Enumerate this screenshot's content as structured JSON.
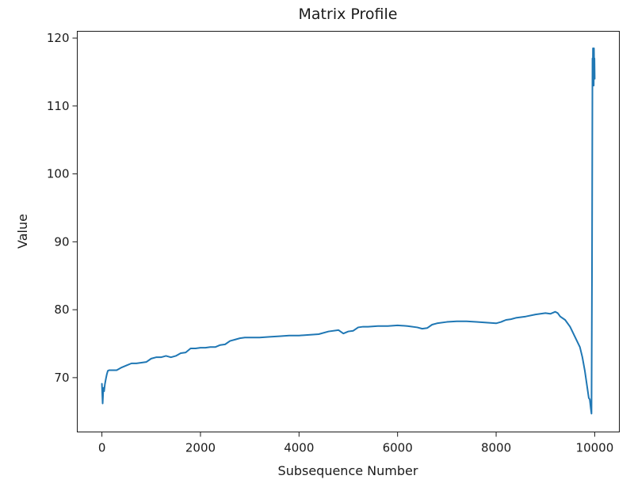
{
  "chart_data": {
    "type": "line",
    "title": "Matrix Profile",
    "xlabel": "Subsequence Number",
    "ylabel": "Value",
    "xlim": [
      -500,
      10500
    ],
    "ylim": [
      62,
      121
    ],
    "xticks": [
      0,
      2000,
      4000,
      6000,
      8000,
      10000
    ],
    "xtick_labels": [
      "0",
      "2000",
      "4000",
      "6000",
      "8000",
      "10000"
    ],
    "yticks": [
      70,
      80,
      90,
      100,
      110,
      120
    ],
    "ytick_labels": [
      "70",
      "80",
      "90",
      "100",
      "110",
      "120"
    ],
    "grid": false,
    "series": [
      {
        "color": "#1f77b4",
        "x": [
          0,
          15,
          30,
          45,
          60,
          80,
          100,
          120,
          150,
          200,
          300,
          400,
          500,
          600,
          700,
          800,
          900,
          1000,
          1100,
          1200,
          1300,
          1400,
          1500,
          1600,
          1700,
          1800,
          1900,
          2000,
          2100,
          2200,
          2300,
          2400,
          2500,
          2600,
          2700,
          2800,
          2900,
          3000,
          3200,
          3400,
          3600,
          3800,
          4000,
          4200,
          4400,
          4600,
          4800,
          4900,
          5000,
          5100,
          5200,
          5300,
          5400,
          5600,
          5800,
          6000,
          6200,
          6400,
          6500,
          6600,
          6700,
          6800,
          7000,
          7200,
          7400,
          7600,
          7800,
          8000,
          8100,
          8200,
          8300,
          8400,
          8600,
          8800,
          9000,
          9100,
          9200,
          9250,
          9300,
          9400,
          9500,
          9600,
          9700,
          9750,
          9800,
          9850,
          9880,
          9900,
          9920,
          9935,
          9945,
          9955,
          9960,
          9965,
          9970,
          9975,
          9980,
          9985,
          9990,
          9995,
          10000
        ],
        "values": [
          69.1,
          66.2,
          68.5,
          68.0,
          69.0,
          69.8,
          70.5,
          71.0,
          71.1,
          71.1,
          71.1,
          71.5,
          71.8,
          72.1,
          72.1,
          72.2,
          72.3,
          72.8,
          73.0,
          73.0,
          73.2,
          73.0,
          73.2,
          73.6,
          73.7,
          74.3,
          74.3,
          74.4,
          74.4,
          74.5,
          74.5,
          74.8,
          74.9,
          75.4,
          75.6,
          75.8,
          75.9,
          75.9,
          75.9,
          76.0,
          76.1,
          76.2,
          76.2,
          76.3,
          76.4,
          76.8,
          77.0,
          76.5,
          76.8,
          76.9,
          77.4,
          77.5,
          77.5,
          77.6,
          77.6,
          77.7,
          77.6,
          77.4,
          77.2,
          77.3,
          77.8,
          78.0,
          78.2,
          78.3,
          78.3,
          78.2,
          78.1,
          78.0,
          78.2,
          78.5,
          78.6,
          78.8,
          79.0,
          79.3,
          79.5,
          79.4,
          79.7,
          79.5,
          79.0,
          78.5,
          77.5,
          76.0,
          74.5,
          73.0,
          71.0,
          68.5,
          67.0,
          66.8,
          65.5,
          64.7,
          85.0,
          117.0,
          113.0,
          118.5,
          113.5,
          117.5,
          113.0,
          118.5,
          115.0,
          117.0,
          114.0
        ]
      }
    ]
  }
}
